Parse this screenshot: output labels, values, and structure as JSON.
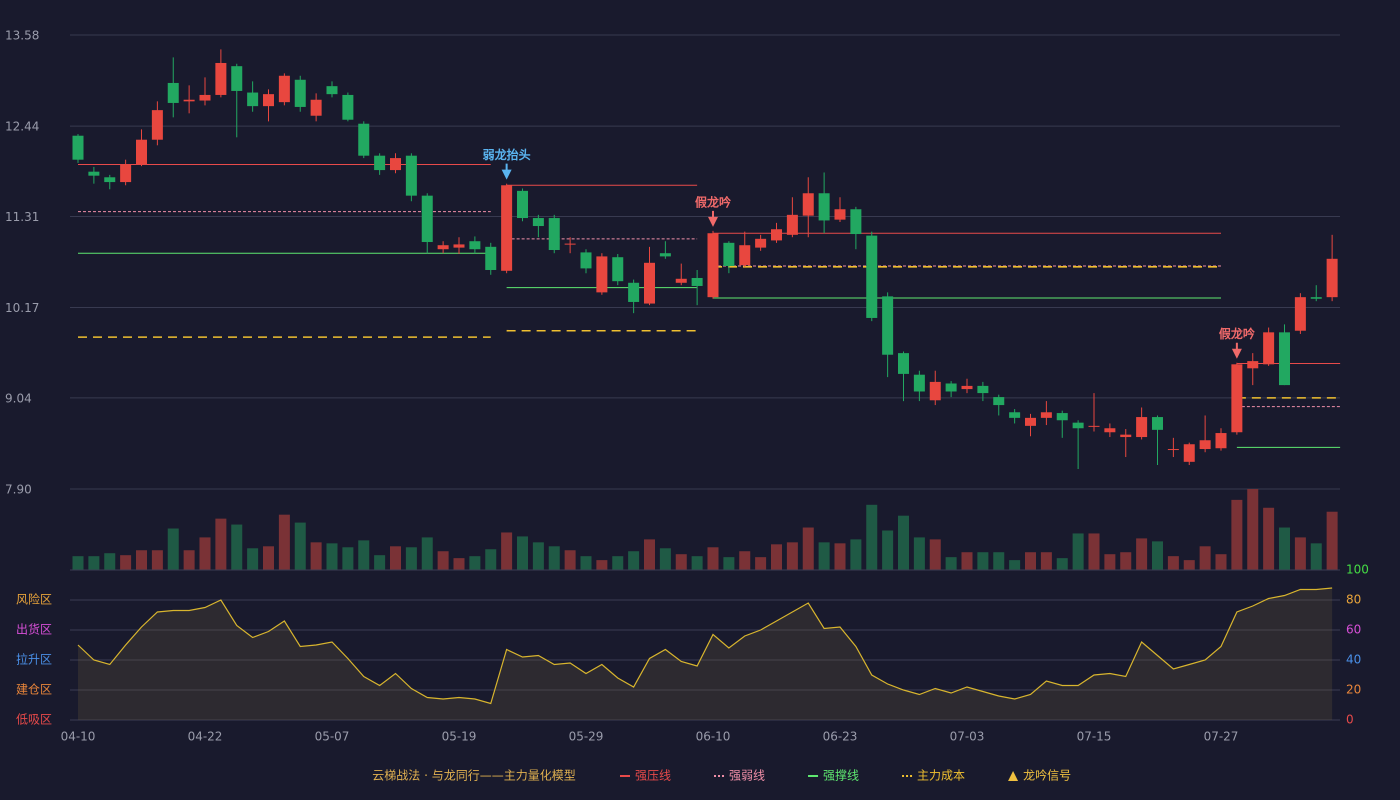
{
  "chart_data": {
    "type": "candlestick",
    "categories": [
      "04-10",
      null,
      null,
      null,
      null,
      null,
      null,
      null,
      "04-22",
      null,
      null,
      null,
      null,
      null,
      null,
      null,
      "05-07",
      null,
      null,
      null,
      null,
      null,
      null,
      null,
      "05-19",
      null,
      null,
      null,
      null,
      null,
      null,
      null,
      "05-29",
      null,
      null,
      null,
      null,
      null,
      null,
      null,
      "06-10",
      null,
      null,
      null,
      null,
      null,
      null,
      null,
      "06-23",
      null,
      null,
      null,
      null,
      null,
      null,
      null,
      "07-03",
      null,
      null,
      null,
      null,
      null,
      null,
      null,
      "07-15",
      null,
      null,
      null,
      null,
      null,
      null,
      null,
      "07-27",
      null,
      null,
      null,
      null,
      null,
      null,
      null
    ],
    "open": [
      12.32,
      11.87,
      11.8,
      11.74,
      11.96,
      12.27,
      12.98,
      12.75,
      12.76,
      12.83,
      13.19,
      12.86,
      12.69,
      12.74,
      13.02,
      12.57,
      12.94,
      12.83,
      12.47,
      12.07,
      11.89,
      12.07,
      11.57,
      10.9,
      10.92,
      11.0,
      10.93,
      10.63,
      11.63,
      11.29,
      11.29,
      10.96,
      10.86,
      10.36,
      10.8,
      10.48,
      10.22,
      10.85,
      10.48,
      10.54,
      10.3,
      10.98,
      10.7,
      10.92,
      11.01,
      11.08,
      11.32,
      11.6,
      11.27,
      11.4,
      11.07,
      10.31,
      9.6,
      9.33,
      9.01,
      9.22,
      9.15,
      9.19,
      9.05,
      8.86,
      8.69,
      8.79,
      8.85,
      8.73,
      8.68,
      8.61,
      8.55,
      8.55,
      8.8,
      8.39,
      8.24,
      8.4,
      8.41,
      8.61,
      9.41,
      9.46,
      9.86,
      9.88,
      10.3,
      10.3
    ],
    "close": [
      12.02,
      11.82,
      11.74,
      11.96,
      12.27,
      12.64,
      12.73,
      12.77,
      12.83,
      13.23,
      12.88,
      12.69,
      12.84,
      13.07,
      12.68,
      12.77,
      12.84,
      12.52,
      12.07,
      11.89,
      12.04,
      11.57,
      10.99,
      10.95,
      10.96,
      10.9,
      10.64,
      11.7,
      11.29,
      11.19,
      10.89,
      10.97,
      10.66,
      10.81,
      10.5,
      10.24,
      10.73,
      10.81,
      10.53,
      10.44,
      11.1,
      10.69,
      10.95,
      11.03,
      11.15,
      11.33,
      11.6,
      11.26,
      11.4,
      11.09,
      10.04,
      9.58,
      9.34,
      9.12,
      9.24,
      9.12,
      9.19,
      9.1,
      8.95,
      8.79,
      8.79,
      8.86,
      8.76,
      8.66,
      8.69,
      8.66,
      8.58,
      8.8,
      8.64,
      8.4,
      8.46,
      8.51,
      8.6,
      9.46,
      9.5,
      9.86,
      9.2,
      10.3,
      10.28,
      10.78
    ],
    "high": [
      12.34,
      11.93,
      11.83,
      12.02,
      12.4,
      12.75,
      13.3,
      12.95,
      13.05,
      13.4,
      13.22,
      13.0,
      12.9,
      13.1,
      13.07,
      12.85,
      13.0,
      12.86,
      12.5,
      12.1,
      12.1,
      12.1,
      11.6,
      11.0,
      11.05,
      11.06,
      10.98,
      11.72,
      11.66,
      11.33,
      11.33,
      11.05,
      10.9,
      10.85,
      10.84,
      10.52,
      10.93,
      11.0,
      10.72,
      10.64,
      11.13,
      11.0,
      11.12,
      11.08,
      11.23,
      11.55,
      11.8,
      11.86,
      11.55,
      11.43,
      11.12,
      10.36,
      9.62,
      9.38,
      9.38,
      9.25,
      9.28,
      9.24,
      9.08,
      8.9,
      8.84,
      9.0,
      8.88,
      8.76,
      9.1,
      8.72,
      8.65,
      8.92,
      8.82,
      8.54,
      8.48,
      8.82,
      8.66,
      9.48,
      9.6,
      9.92,
      9.96,
      10.35,
      10.45,
      11.08
    ],
    "low": [
      11.98,
      11.72,
      11.65,
      11.7,
      11.94,
      12.2,
      12.55,
      12.6,
      12.7,
      12.8,
      12.3,
      12.62,
      12.5,
      12.7,
      12.62,
      12.5,
      12.8,
      12.5,
      12.04,
      11.83,
      11.85,
      11.5,
      10.85,
      10.85,
      10.84,
      10.85,
      10.58,
      10.6,
      11.25,
      11.05,
      10.85,
      10.85,
      10.6,
      10.33,
      10.45,
      10.1,
      10.2,
      10.78,
      10.45,
      10.2,
      10.28,
      10.6,
      10.68,
      10.88,
      10.98,
      11.05,
      11.05,
      11.1,
      11.24,
      10.9,
      10.0,
      9.3,
      9.0,
      9.0,
      8.95,
      9.05,
      9.1,
      9.0,
      8.82,
      8.72,
      8.56,
      8.7,
      8.54,
      8.15,
      8.62,
      8.55,
      8.3,
      8.52,
      8.2,
      8.3,
      8.2,
      8.36,
      8.38,
      8.58,
      9.2,
      9.44,
      9.2,
      9.84,
      10.25,
      10.25
    ],
    "up_color": "#e8473f",
    "down_color": "#22a861",
    "ylim": [
      7.9,
      13.58
    ],
    "yticks": [
      {
        "value": 7.9,
        "label": "7.90"
      },
      9.04,
      10.17,
      11.31,
      12.44,
      13.58
    ],
    "grid": true,
    "volume": [
      14,
      14,
      17,
      15,
      20,
      20,
      42,
      20,
      33,
      52,
      46,
      22,
      24,
      56,
      48,
      28,
      27,
      23,
      30,
      15,
      24,
      23,
      33,
      19,
      12,
      14,
      21,
      38,
      34,
      28,
      24,
      20,
      14,
      10,
      14,
      19,
      31,
      22,
      16,
      14,
      23,
      13,
      19,
      13,
      26,
      28,
      43,
      28,
      27,
      31,
      66,
      40,
      55,
      33,
      31,
      13,
      18,
      18,
      18,
      10,
      18,
      18,
      12,
      37,
      37,
      16,
      18,
      32,
      29,
      14,
      10,
      24,
      16,
      71,
      82,
      63,
      43,
      33,
      27,
      59
    ],
    "volume_colors": {
      "up": "#7a3236",
      "down": "#1f5a45"
    },
    "segments": [
      [
        0,
        26
      ],
      [
        27,
        39
      ],
      [
        40,
        72
      ],
      [
        73,
        79
      ]
    ],
    "lines": [
      {
        "name": "强压线",
        "color": "#e84a4a",
        "style": "solid",
        "values": [
          11.96,
          11.7,
          11.1,
          9.47
        ]
      },
      {
        "name": "强弱线",
        "color": "#f08fa8",
        "style": "dotted",
        "values": [
          11.37,
          11.03,
          10.69,
          8.93
        ]
      },
      {
        "name": "强撑线",
        "color": "#5ee870",
        "style": "solid",
        "values": [
          10.85,
          10.42,
          10.29,
          8.42
        ]
      },
      {
        "name": "主力成本",
        "color": "#f0c030",
        "style": "dashed",
        "values": [
          9.8,
          9.88,
          10.68,
          9.04
        ]
      }
    ],
    "signals": [
      {
        "index": 27,
        "label": "弱龙抬头",
        "color": "#5ab4f0"
      },
      {
        "index": 40,
        "label": "假龙吟",
        "color": "#f06a6a"
      },
      {
        "index": 73,
        "label": "假龙吟",
        "color": "#f06a6a"
      }
    ],
    "signal_legend": {
      "name": "龙吟信号",
      "color": "#f0c040"
    },
    "model_title": "云梯战法 · 与龙同行——主力量化模型",
    "model_title_color": "#e0b050",
    "indicator": {
      "values": [
        50,
        40,
        37,
        50,
        62,
        72,
        73,
        73,
        75,
        80,
        63,
        55,
        59,
        66,
        49,
        50,
        52,
        41,
        29,
        23,
        31,
        21,
        15,
        14,
        15,
        14,
        11,
        47,
        42,
        43,
        37,
        38,
        31,
        37,
        28,
        22,
        41,
        47,
        39,
        36,
        57,
        48,
        56,
        60,
        66,
        72,
        78,
        61,
        62,
        49,
        30,
        24,
        20,
        17,
        21,
        18,
        22,
        19,
        16,
        14,
        17,
        26,
        23,
        23,
        30,
        31,
        29,
        52,
        43,
        34,
        37,
        40,
        49,
        72,
        76,
        81,
        83,
        87,
        87,
        88
      ],
      "color": "#d8b52e",
      "ylim": [
        0,
        100
      ],
      "yticks": [
        0,
        20,
        40,
        60,
        80,
        100
      ],
      "ytick_colors": [
        "#e84a4a",
        "#e8853a",
        "#4a90e8",
        "#d74fd7",
        "#e8a33a",
        "#44dd44"
      ],
      "zones": [
        {
          "label": "风险区",
          "value": 80,
          "color": "#e8a33a"
        },
        {
          "label": "出货区",
          "value": 60,
          "color": "#d74fd7"
        },
        {
          "label": "拉升区",
          "value": 40,
          "color": "#4a90e8"
        },
        {
          "label": "建仓区",
          "value": 20,
          "color": "#e8853a"
        },
        {
          "label": "低吸区",
          "value": 0,
          "color": "#e84a4a"
        }
      ]
    }
  }
}
